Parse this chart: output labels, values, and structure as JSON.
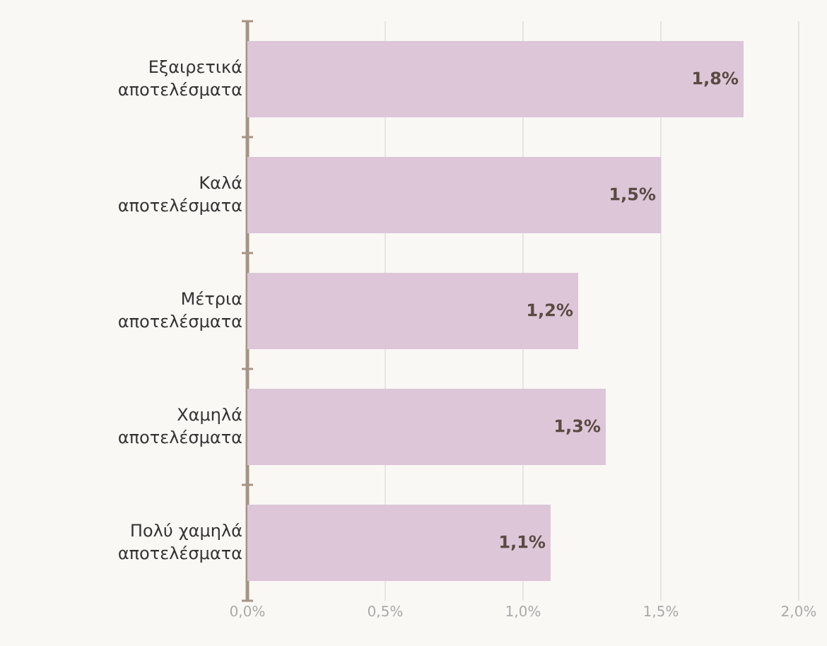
{
  "chart_data": {
    "type": "bar",
    "orientation": "horizontal",
    "categories": [
      "Εξαιρετικά αποτελέσματα",
      "Καλά αποτελέσματα",
      "Μέτρια αποτελέσματα",
      "Χαμηλά αποτελέσματα",
      "Πολύ χαμηλά αποτελέσματα"
    ],
    "values": [
      1.8,
      1.5,
      1.2,
      1.3,
      1.1
    ],
    "value_labels": [
      "1,8%",
      "1,5%",
      "1,2%",
      "1,3%",
      "1,1%"
    ],
    "color": "#dcc6d8",
    "xlim": [
      0,
      2
    ],
    "xticks": [
      {
        "value": 0,
        "label": "0,0%"
      },
      {
        "value": 0.5,
        "label": "0,5%"
      },
      {
        "value": 1,
        "label": "1,0%"
      },
      {
        "value": 1.5,
        "label": "1,5%"
      },
      {
        "value": 2,
        "label": "2,0%"
      }
    ],
    "grid": "x"
  }
}
